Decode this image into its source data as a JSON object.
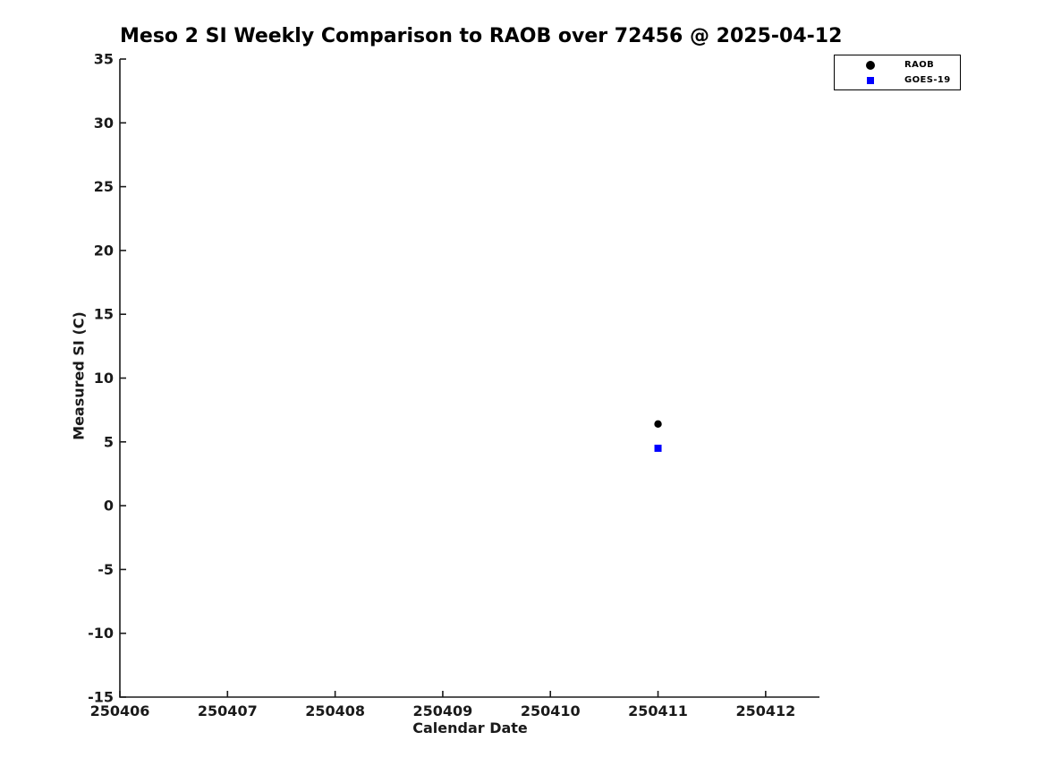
{
  "chart_data": {
    "type": "scatter",
    "title": "Meso 2 SI Weekly Comparison to RAOB over 72456 @ 2025-04-12",
    "xlabel": "Calendar Date",
    "ylabel": "Measured SI (C)",
    "xlim": [
      250406,
      250412.5
    ],
    "ylim": [
      -15,
      35
    ],
    "x_tick_values": [
      250406,
      250407,
      250408,
      250409,
      250410,
      250411,
      250412
    ],
    "x_tick_labels": [
      "250406",
      "250407",
      "250408",
      "250409",
      "250410",
      "250411",
      "250412"
    ],
    "y_tick_values": [
      -15,
      -10,
      -5,
      0,
      5,
      10,
      15,
      20,
      25,
      30,
      35
    ],
    "y_tick_labels": [
      "-15",
      "-10",
      "-5",
      "0",
      "5",
      "10",
      "15",
      "20",
      "25",
      "30",
      "35"
    ],
    "grid": false,
    "axis_color": "#1a1a1a",
    "background_color": "#ffffff",
    "legend_position": "top-right",
    "series": [
      {
        "name": "RAOB",
        "marker": "circle",
        "color": "#000000",
        "points": [
          {
            "x": 250411,
            "y": 6.4
          }
        ]
      },
      {
        "name": "GOES-19",
        "marker": "square",
        "color": "#0000ff",
        "points": [
          {
            "x": 250411,
            "y": 4.5
          }
        ]
      }
    ]
  }
}
